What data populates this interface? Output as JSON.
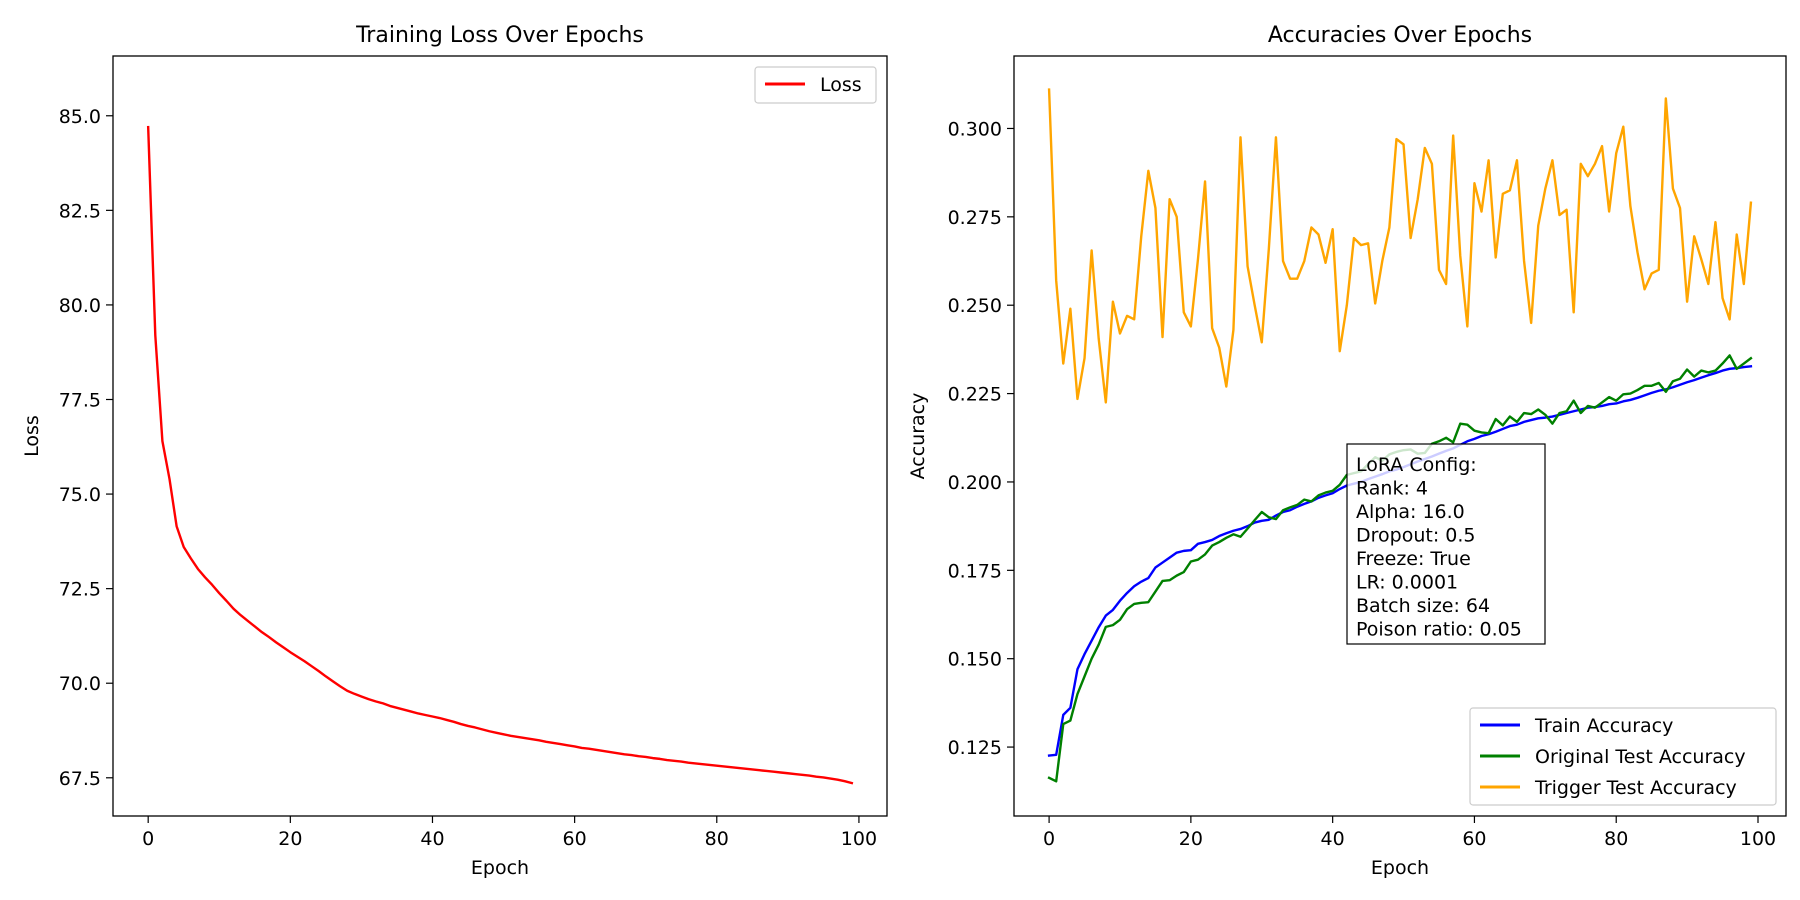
{
  "chart_data": [
    {
      "type": "line",
      "title": "Training Loss Over Epochs",
      "xlabel": "Epoch",
      "ylabel": "Loss",
      "xlim": [
        -4.95,
        103.95
      ],
      "ylim": [
        66.49,
        86.58
      ],
      "xticks": [
        0,
        20,
        40,
        60,
        80,
        100
      ],
      "yticks": [
        67.5,
        70.0,
        72.5,
        75.0,
        77.5,
        80.0,
        82.5,
        85.0
      ],
      "xtick_labels": [
        "0",
        "20",
        "40",
        "60",
        "80",
        "100"
      ],
      "ytick_labels": [
        "67.5",
        "70.0",
        "72.5",
        "75.0",
        "77.5",
        "80.0",
        "82.5",
        "85.0"
      ],
      "grid": false,
      "legend": {
        "position": "upper right",
        "entries": [
          "Loss"
        ]
      },
      "series": [
        {
          "name": "Loss",
          "color": "#ff0000",
          "values": [
            84.7,
            79.2,
            76.4,
            75.4,
            74.15,
            73.6,
            73.3,
            73.02,
            72.8,
            72.6,
            72.38,
            72.18,
            71.97,
            71.8,
            71.65,
            71.5,
            71.35,
            71.22,
            71.08,
            70.95,
            70.82,
            70.7,
            70.58,
            70.45,
            70.32,
            70.18,
            70.05,
            69.92,
            69.8,
            69.72,
            69.65,
            69.58,
            69.52,
            69.47,
            69.4,
            69.35,
            69.3,
            69.25,
            69.2,
            69.16,
            69.12,
            69.08,
            69.03,
            68.98,
            68.92,
            68.87,
            68.83,
            68.78,
            68.73,
            68.69,
            68.65,
            68.61,
            68.58,
            68.55,
            68.52,
            68.49,
            68.45,
            68.42,
            68.39,
            68.36,
            68.33,
            68.29,
            68.27,
            68.24,
            68.21,
            68.18,
            68.15,
            68.12,
            68.1,
            68.07,
            68.05,
            68.02,
            68.0,
            67.97,
            67.95,
            67.93,
            67.9,
            67.88,
            67.86,
            67.84,
            67.82,
            67.8,
            67.78,
            67.76,
            67.74,
            67.72,
            67.7,
            67.68,
            67.66,
            67.64,
            67.62,
            67.6,
            67.58,
            67.56,
            67.53,
            67.51,
            67.48,
            67.45,
            67.41,
            67.36
          ]
        }
      ]
    },
    {
      "type": "line",
      "title": "Accuracies Over Epochs",
      "xlabel": "Epoch",
      "ylabel": "Accuracy",
      "xlim": [
        -4.95,
        103.95
      ],
      "ylim": [
        0.1055,
        0.3205
      ],
      "xticks": [
        0,
        20,
        40,
        60,
        80,
        100
      ],
      "yticks": [
        0.125,
        0.15,
        0.175,
        0.2,
        0.225,
        0.25,
        0.275,
        0.3
      ],
      "xtick_labels": [
        "0",
        "20",
        "40",
        "60",
        "80",
        "100"
      ],
      "ytick_labels": [
        "0.125",
        "0.150",
        "0.175",
        "0.200",
        "0.225",
        "0.250",
        "0.275",
        "0.300"
      ],
      "grid": false,
      "legend": {
        "position": "lower right",
        "entries": [
          "Train Accuracy",
          "Original Test Accuracy",
          "Trigger Test Accuracy"
        ]
      },
      "annotation": {
        "position": "center",
        "lines": [
          "LoRA Config:",
          "Rank: 4",
          "Alpha: 16.0",
          "Dropout: 0.5",
          "Freeze: True",
          "LR: 0.0001",
          "Batch size: 64",
          "Poison ratio: 0.05"
        ]
      },
      "series": [
        {
          "name": "Train Accuracy",
          "color": "#0000ff",
          "values": [
            0.1226,
            0.1228,
            0.1341,
            0.1361,
            0.147,
            0.1513,
            0.1551,
            0.1589,
            0.1622,
            0.1638,
            0.1664,
            0.1686,
            0.1705,
            0.1718,
            0.1728,
            0.1758,
            0.1772,
            0.1786,
            0.18,
            0.1805,
            0.1807,
            0.1825,
            0.183,
            0.1836,
            0.1847,
            0.1855,
            0.1862,
            0.1867,
            0.1875,
            0.1885,
            0.189,
            0.1893,
            0.1905,
            0.1915,
            0.192,
            0.193,
            0.1938,
            0.1945,
            0.1955,
            0.1962,
            0.1968,
            0.198,
            0.199,
            0.1995,
            0.2,
            0.2008,
            0.2015,
            0.2022,
            0.203,
            0.2035,
            0.2042,
            0.205,
            0.2058,
            0.2065,
            0.2072,
            0.208,
            0.2088,
            0.2095,
            0.2105,
            0.2115,
            0.2122,
            0.213,
            0.2135,
            0.2142,
            0.215,
            0.2158,
            0.2162,
            0.217,
            0.2175,
            0.218,
            0.2182,
            0.2185,
            0.219,
            0.2195,
            0.22,
            0.2205,
            0.221,
            0.2212,
            0.2215,
            0.222,
            0.2222,
            0.2228,
            0.2232,
            0.2238,
            0.2245,
            0.2252,
            0.2258,
            0.2262,
            0.2268,
            0.2275,
            0.2282,
            0.2288,
            0.2295,
            0.2302,
            0.2308,
            0.2315,
            0.232,
            0.2322,
            0.2325,
            0.2327
          ]
        },
        {
          "name": "Original Test Accuracy",
          "color": "#008000",
          "values": [
            0.1163,
            0.1153,
            0.1315,
            0.1325,
            0.14,
            0.145,
            0.15,
            0.154,
            0.159,
            0.1595,
            0.161,
            0.164,
            0.1655,
            0.1658,
            0.166,
            0.169,
            0.172,
            0.1722,
            0.1735,
            0.1745,
            0.1775,
            0.178,
            0.1795,
            0.182,
            0.183,
            0.1842,
            0.1852,
            0.1845,
            0.1868,
            0.1892,
            0.1915,
            0.19,
            0.1895,
            0.192,
            0.1928,
            0.1935,
            0.195,
            0.1945,
            0.1962,
            0.197,
            0.1975,
            0.1992,
            0.202,
            0.2025,
            0.203,
            0.205,
            0.207,
            0.206,
            0.2078,
            0.2085,
            0.209,
            0.2092,
            0.208,
            0.2082,
            0.2108,
            0.2115,
            0.2125,
            0.2112,
            0.2165,
            0.2162,
            0.2145,
            0.214,
            0.2138,
            0.2178,
            0.216,
            0.2185,
            0.217,
            0.2195,
            0.2192,
            0.2205,
            0.219,
            0.2165,
            0.2195,
            0.22,
            0.223,
            0.2195,
            0.2215,
            0.221,
            0.2225,
            0.224,
            0.223,
            0.2248,
            0.225,
            0.226,
            0.2272,
            0.2272,
            0.228,
            0.2255,
            0.2285,
            0.2292,
            0.2318,
            0.2298,
            0.2315,
            0.231,
            0.2315,
            0.2335,
            0.2358,
            0.232,
            0.2335,
            0.235
          ]
        },
        {
          "name": "Trigger Test Accuracy",
          "color": "#ffa500",
          "values": [
            0.311,
            0.257,
            0.2335,
            0.249,
            0.2235,
            0.235,
            0.2655,
            0.2405,
            0.2225,
            0.251,
            0.242,
            0.247,
            0.246,
            0.2695,
            0.288,
            0.2775,
            0.241,
            0.28,
            0.275,
            0.248,
            0.244,
            0.263,
            0.285,
            0.2435,
            0.238,
            0.227,
            0.243,
            0.2975,
            0.261,
            0.25,
            0.2395,
            0.266,
            0.2975,
            0.2625,
            0.2575,
            0.2575,
            0.2625,
            0.272,
            0.27,
            0.262,
            0.2715,
            0.237,
            0.25,
            0.269,
            0.267,
            0.2675,
            0.2505,
            0.2625,
            0.272,
            0.297,
            0.2955,
            0.269,
            0.28,
            0.2945,
            0.29,
            0.26,
            0.256,
            0.298,
            0.264,
            0.244,
            0.2845,
            0.2765,
            0.291,
            0.2635,
            0.2815,
            0.2825,
            0.291,
            0.2625,
            0.245,
            0.2725,
            0.283,
            0.291,
            0.2755,
            0.277,
            0.248,
            0.29,
            0.2865,
            0.29,
            0.295,
            0.2765,
            0.293,
            0.3005,
            0.278,
            0.265,
            0.2545,
            0.259,
            0.26,
            0.3085,
            0.283,
            0.2775,
            0.251,
            0.2695,
            0.263,
            0.256,
            0.2735,
            0.252,
            0.246,
            0.27,
            0.256,
            0.279
          ]
        }
      ]
    }
  ]
}
